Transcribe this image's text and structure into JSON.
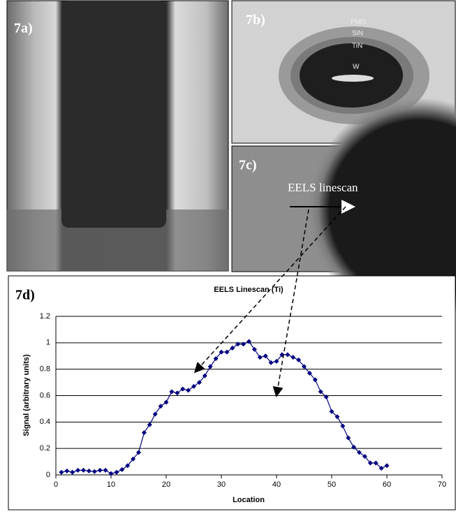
{
  "panels": [
    {
      "label": "7a)"
    },
    {
      "label": "7b)",
      "annotations": [
        "PMD",
        "SiN",
        "TiN",
        "W"
      ]
    },
    {
      "label": "7c)",
      "annotations": [
        "EELS linescan"
      ]
    }
  ],
  "chart_data": {
    "type": "line",
    "panel_label": "7d)",
    "title": "EELS Linescan (Ti)",
    "x_label": "Location",
    "y_label": "Signal (arbitrary units)",
    "color": "#000080",
    "x": [
      1,
      2,
      3,
      4,
      5,
      6,
      7,
      8,
      9,
      10,
      11,
      12,
      13,
      14,
      15,
      16,
      17,
      18,
      19,
      20,
      21,
      22,
      23,
      24,
      25,
      26,
      27,
      28,
      29,
      30,
      31,
      32,
      33,
      34,
      35,
      36,
      37,
      38,
      39,
      40,
      41,
      42,
      43,
      44,
      45,
      46,
      47,
      48,
      49,
      50,
      51,
      52,
      53,
      54,
      55,
      56,
      57,
      58,
      59,
      60
    ],
    "values": [
      0.02,
      0.03,
      0.02,
      0.035,
      0.035,
      0.03,
      0.025,
      0.035,
      0.035,
      0.01,
      0.02,
      0.04,
      0.07,
      0.12,
      0.17,
      0.32,
      0.38,
      0.46,
      0.52,
      0.55,
      0.63,
      0.62,
      0.65,
      0.64,
      0.67,
      0.7,
      0.75,
      0.82,
      0.88,
      0.93,
      0.93,
      0.96,
      0.99,
      0.99,
      1.01,
      0.95,
      0.89,
      0.9,
      0.85,
      0.86,
      0.91,
      0.91,
      0.89,
      0.87,
      0.82,
      0.77,
      0.72,
      0.63,
      0.59,
      0.48,
      0.44,
      0.37,
      0.28,
      0.21,
      0.17,
      0.14,
      0.09,
      0.09,
      0.05,
      0.07
    ],
    "xlim": [
      0,
      70
    ],
    "xticks": [
      0,
      10,
      20,
      30,
      40,
      50,
      60,
      70
    ],
    "ylim": [
      0,
      1.2
    ],
    "yticks": [
      0,
      0.2,
      0.4,
      0.6,
      0.8,
      1,
      1.2
    ],
    "grid": true
  }
}
